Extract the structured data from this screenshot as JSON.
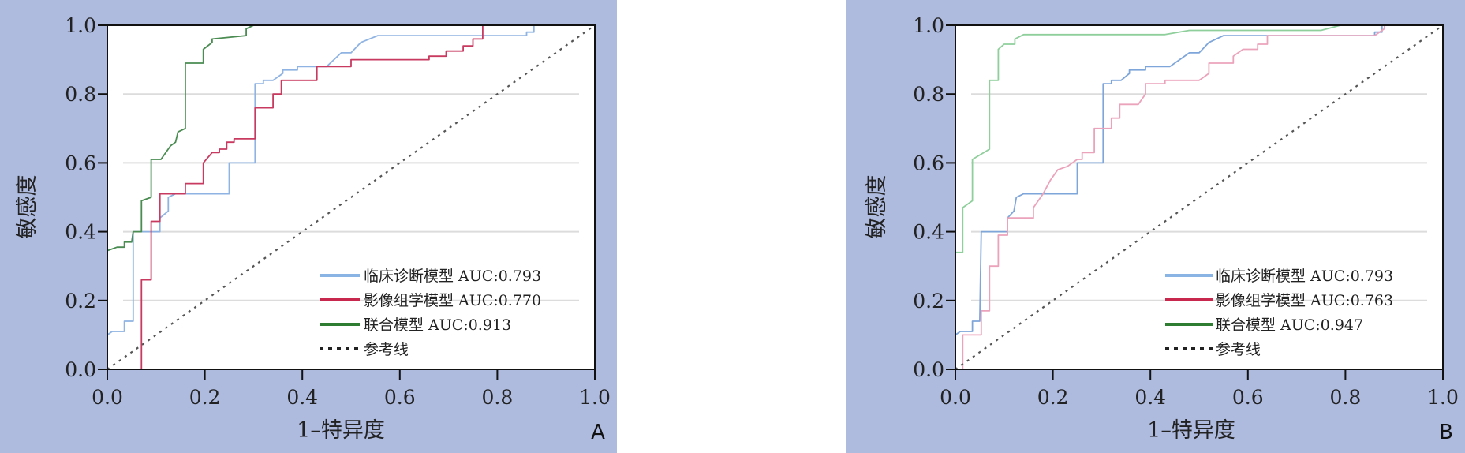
{
  "colors": {
    "background": "#aebbdf",
    "plot": "#ffffff",
    "grid": "#dcdcdc",
    "axis": "#111111"
  },
  "chart_data": [
    {
      "type": "line",
      "panel_label": "A",
      "xlabel": "1–特异度",
      "ylabel": "敏感度",
      "xlim": [
        0,
        1
      ],
      "ylim": [
        0,
        1
      ],
      "xticks": [
        "0.0",
        "0.2",
        "0.4",
        "0.6",
        "0.8",
        "1.0"
      ],
      "yticks": [
        "0.0",
        "0.2",
        "0.4",
        "0.6",
        "0.8",
        "1.0"
      ],
      "grid": "horizontal",
      "legend_position": "bottom-right",
      "series": [
        {
          "name": "临床诊断模型 AUC:0.793",
          "color": "#8fb3e2",
          "style": "solid",
          "points": [
            [
              0,
              0.1
            ],
            [
              0.01,
              0.11
            ],
            [
              0.035,
              0.11
            ],
            [
              0.035,
              0.14
            ],
            [
              0.053,
              0.14
            ],
            [
              0.053,
              0.4
            ],
            [
              0.108,
              0.4
            ],
            [
              0.108,
              0.44
            ],
            [
              0.125,
              0.46
            ],
            [
              0.125,
              0.5
            ],
            [
              0.14,
              0.51
            ],
            [
              0.25,
              0.51
            ],
            [
              0.25,
              0.6
            ],
            [
              0.303,
              0.6
            ],
            [
              0.303,
              0.83
            ],
            [
              0.32,
              0.83
            ],
            [
              0.32,
              0.84
            ],
            [
              0.34,
              0.84
            ],
            [
              0.36,
              0.86
            ],
            [
              0.36,
              0.87
            ],
            [
              0.39,
              0.87
            ],
            [
              0.39,
              0.88
            ],
            [
              0.45,
              0.88
            ],
            [
              0.48,
              0.92
            ],
            [
              0.5,
              0.92
            ],
            [
              0.52,
              0.95
            ],
            [
              0.555,
              0.97
            ],
            [
              0.86,
              0.97
            ],
            [
              0.86,
              0.98
            ],
            [
              0.875,
              0.98
            ],
            [
              0.875,
              1.0
            ],
            [
              1,
              1
            ]
          ]
        },
        {
          "name": "影像组学模型 AUC:0.770",
          "color": "#c83a60",
          "style": "solid",
          "points": [
            [
              0,
              0
            ],
            [
              0.07,
              0
            ],
            [
              0.07,
              0.26
            ],
            [
              0.09,
              0.26
            ],
            [
              0.09,
              0.43
            ],
            [
              0.108,
              0.43
            ],
            [
              0.108,
              0.51
            ],
            [
              0.16,
              0.51
            ],
            [
              0.16,
              0.54
            ],
            [
              0.197,
              0.54
            ],
            [
              0.197,
              0.6
            ],
            [
              0.215,
              0.63
            ],
            [
              0.23,
              0.63
            ],
            [
              0.23,
              0.64
            ],
            [
              0.245,
              0.64
            ],
            [
              0.245,
              0.66
            ],
            [
              0.26,
              0.66
            ],
            [
              0.26,
              0.67
            ],
            [
              0.303,
              0.67
            ],
            [
              0.303,
              0.76
            ],
            [
              0.34,
              0.76
            ],
            [
              0.34,
              0.8
            ],
            [
              0.357,
              0.8
            ],
            [
              0.357,
              0.84
            ],
            [
              0.43,
              0.84
            ],
            [
              0.43,
              0.88
            ],
            [
              0.5,
              0.88
            ],
            [
              0.5,
              0.9
            ],
            [
              0.66,
              0.9
            ],
            [
              0.66,
              0.91
            ],
            [
              0.695,
              0.91
            ],
            [
              0.695,
              0.925
            ],
            [
              0.73,
              0.925
            ],
            [
              0.73,
              0.94
            ],
            [
              0.75,
              0.94
            ],
            [
              0.75,
              0.96
            ],
            [
              0.77,
              0.96
            ],
            [
              0.77,
              1.0
            ],
            [
              1,
              1
            ]
          ]
        },
        {
          "name": "联合模型 AUC:0.913",
          "color": "#4a8c52",
          "style": "solid",
          "points": [
            [
              0,
              0.345
            ],
            [
              0.02,
              0.355
            ],
            [
              0.035,
              0.355
            ],
            [
              0.035,
              0.37
            ],
            [
              0.05,
              0.37
            ],
            [
              0.053,
              0.4
            ],
            [
              0.07,
              0.4
            ],
            [
              0.07,
              0.49
            ],
            [
              0.09,
              0.5
            ],
            [
              0.09,
              0.61
            ],
            [
              0.11,
              0.61
            ],
            [
              0.13,
              0.65
            ],
            [
              0.14,
              0.66
            ],
            [
              0.145,
              0.69
            ],
            [
              0.16,
              0.7
            ],
            [
              0.16,
              0.89
            ],
            [
              0.197,
              0.89
            ],
            [
              0.197,
              0.93
            ],
            [
              0.215,
              0.95
            ],
            [
              0.215,
              0.96
            ],
            [
              0.285,
              0.97
            ],
            [
              0.285,
              0.99
            ],
            [
              0.3,
              1.0
            ],
            [
              1,
              1
            ]
          ]
        },
        {
          "name": "参考线",
          "color": "#555555",
          "style": "dashed",
          "points": [
            [
              0,
              0
            ],
            [
              1,
              1
            ]
          ]
        }
      ]
    },
    {
      "type": "line",
      "panel_label": "B",
      "xlabel": "1–特异度",
      "ylabel": "敏感度",
      "xlim": [
        0,
        1
      ],
      "ylim": [
        0,
        1
      ],
      "xticks": [
        "0.0",
        "0.2",
        "0.4",
        "0.6",
        "0.8",
        "1.0"
      ],
      "yticks": [
        "0.0",
        "0.2",
        "0.4",
        "0.6",
        "0.8",
        "1.0"
      ],
      "grid": "horizontal",
      "legend_position": "bottom-right",
      "series": [
        {
          "name": "临床诊断模型 AUC:0.793",
          "color": "#7fa6da",
          "style": "solid",
          "points": [
            [
              0,
              0.1
            ],
            [
              0.01,
              0.11
            ],
            [
              0.035,
              0.11
            ],
            [
              0.035,
              0.14
            ],
            [
              0.05,
              0.14
            ],
            [
              0.053,
              0.4
            ],
            [
              0.107,
              0.4
            ],
            [
              0.107,
              0.44
            ],
            [
              0.12,
              0.46
            ],
            [
              0.125,
              0.5
            ],
            [
              0.14,
              0.51
            ],
            [
              0.25,
              0.51
            ],
            [
              0.25,
              0.6
            ],
            [
              0.303,
              0.6
            ],
            [
              0.303,
              0.83
            ],
            [
              0.32,
              0.83
            ],
            [
              0.32,
              0.84
            ],
            [
              0.34,
              0.84
            ],
            [
              0.357,
              0.86
            ],
            [
              0.357,
              0.87
            ],
            [
              0.39,
              0.87
            ],
            [
              0.39,
              0.88
            ],
            [
              0.44,
              0.88
            ],
            [
              0.46,
              0.9
            ],
            [
              0.48,
              0.92
            ],
            [
              0.5,
              0.92
            ],
            [
              0.52,
              0.95
            ],
            [
              0.55,
              0.97
            ],
            [
              0.86,
              0.97
            ],
            [
              0.86,
              0.98
            ],
            [
              0.875,
              0.98
            ],
            [
              0.875,
              1.0
            ],
            [
              1,
              1
            ]
          ]
        },
        {
          "name": "影像组学模型 AUC:0.763",
          "color": "#eba3bb",
          "style": "solid",
          "points": [
            [
              0,
              0
            ],
            [
              0.015,
              0
            ],
            [
              0.015,
              0.1
            ],
            [
              0.053,
              0.1
            ],
            [
              0.053,
              0.17
            ],
            [
              0.07,
              0.17
            ],
            [
              0.07,
              0.3
            ],
            [
              0.088,
              0.3
            ],
            [
              0.088,
              0.39
            ],
            [
              0.107,
              0.39
            ],
            [
              0.107,
              0.44
            ],
            [
              0.16,
              0.44
            ],
            [
              0.16,
              0.47
            ],
            [
              0.18,
              0.51
            ],
            [
              0.195,
              0.55
            ],
            [
              0.21,
              0.58
            ],
            [
              0.23,
              0.59
            ],
            [
              0.25,
              0.61
            ],
            [
              0.26,
              0.61
            ],
            [
              0.26,
              0.63
            ],
            [
              0.285,
              0.63
            ],
            [
              0.285,
              0.7
            ],
            [
              0.32,
              0.7
            ],
            [
              0.32,
              0.73
            ],
            [
              0.337,
              0.73
            ],
            [
              0.337,
              0.77
            ],
            [
              0.375,
              0.77
            ],
            [
              0.39,
              0.8
            ],
            [
              0.39,
              0.83
            ],
            [
              0.43,
              0.83
            ],
            [
              0.43,
              0.84
            ],
            [
              0.5,
              0.84
            ],
            [
              0.52,
              0.86
            ],
            [
              0.52,
              0.89
            ],
            [
              0.57,
              0.89
            ],
            [
              0.57,
              0.91
            ],
            [
              0.59,
              0.93
            ],
            [
              0.62,
              0.93
            ],
            [
              0.62,
              0.945
            ],
            [
              0.64,
              0.945
            ],
            [
              0.64,
              0.97
            ],
            [
              0.86,
              0.97
            ],
            [
              0.88,
              0.99
            ],
            [
              0.88,
              1.0
            ],
            [
              1,
              1
            ]
          ]
        },
        {
          "name": "联合模型 AUC:0.947",
          "color": "#8fcf9c",
          "style": "solid",
          "points": [
            [
              0,
              0.34
            ],
            [
              0.015,
              0.34
            ],
            [
              0.015,
              0.47
            ],
            [
              0.035,
              0.49
            ],
            [
              0.035,
              0.61
            ],
            [
              0.07,
              0.64
            ],
            [
              0.07,
              0.84
            ],
            [
              0.088,
              0.84
            ],
            [
              0.088,
              0.93
            ],
            [
              0.1,
              0.945
            ],
            [
              0.122,
              0.945
            ],
            [
              0.122,
              0.96
            ],
            [
              0.14,
              0.973
            ],
            [
              0.43,
              0.973
            ],
            [
              0.48,
              0.985
            ],
            [
              0.75,
              0.985
            ],
            [
              0.79,
              1.0
            ],
            [
              1,
              1
            ]
          ]
        },
        {
          "name": "参考线",
          "color": "#555555",
          "style": "dashed",
          "points": [
            [
              0,
              0
            ],
            [
              1,
              1
            ]
          ]
        }
      ]
    }
  ],
  "legend_colors": [
    "#8ab4e4",
    "#c8284e",
    "#2e7d32",
    "#222222"
  ]
}
